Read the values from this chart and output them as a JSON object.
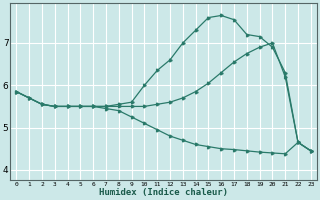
{
  "xlabel": "Humidex (Indice chaleur)",
  "bg_color": "#cce8e8",
  "grid_color": "#ffffff",
  "line_color": "#2a7a6a",
  "xlim": [
    -0.5,
    23.5
  ],
  "ylim": [
    3.75,
    7.95
  ],
  "yticks": [
    4,
    5,
    6,
    7
  ],
  "xticks": [
    0,
    1,
    2,
    3,
    4,
    5,
    6,
    7,
    8,
    9,
    10,
    11,
    12,
    13,
    14,
    15,
    16,
    17,
    18,
    19,
    20,
    21,
    22,
    23
  ],
  "line1_x": [
    0,
    1,
    2,
    3,
    4,
    5,
    6,
    7,
    8,
    9,
    10,
    11,
    12,
    13,
    14,
    15,
    16,
    17,
    18,
    19,
    20,
    21,
    22,
    23
  ],
  "line1_y": [
    5.85,
    5.7,
    5.55,
    5.5,
    5.5,
    5.5,
    5.5,
    5.5,
    5.55,
    5.6,
    6.0,
    6.35,
    6.6,
    7.0,
    7.3,
    7.6,
    7.65,
    7.55,
    7.2,
    7.15,
    6.9,
    6.3,
    4.65,
    4.45
  ],
  "line2_x": [
    0,
    1,
    2,
    3,
    4,
    5,
    6,
    7,
    8,
    9,
    10,
    11,
    12,
    13,
    14,
    15,
    16,
    17,
    18,
    19,
    20,
    21,
    22,
    23
  ],
  "line2_y": [
    5.85,
    5.7,
    5.55,
    5.5,
    5.5,
    5.5,
    5.5,
    5.5,
    5.5,
    5.5,
    5.5,
    5.55,
    5.6,
    5.7,
    5.85,
    6.05,
    6.3,
    6.55,
    6.75,
    6.9,
    7.0,
    6.2,
    4.65,
    4.45
  ],
  "line3_x": [
    0,
    1,
    2,
    3,
    4,
    5,
    6,
    7,
    8,
    9,
    10,
    11,
    12,
    13,
    14,
    15,
    16,
    17,
    18,
    19,
    20,
    21,
    22,
    23
  ],
  "line3_y": [
    5.85,
    5.7,
    5.55,
    5.5,
    5.5,
    5.5,
    5.5,
    5.45,
    5.4,
    5.25,
    5.1,
    4.95,
    4.8,
    4.7,
    4.6,
    4.55,
    4.5,
    4.48,
    4.45,
    4.42,
    4.4,
    4.38,
    4.65,
    4.45
  ]
}
